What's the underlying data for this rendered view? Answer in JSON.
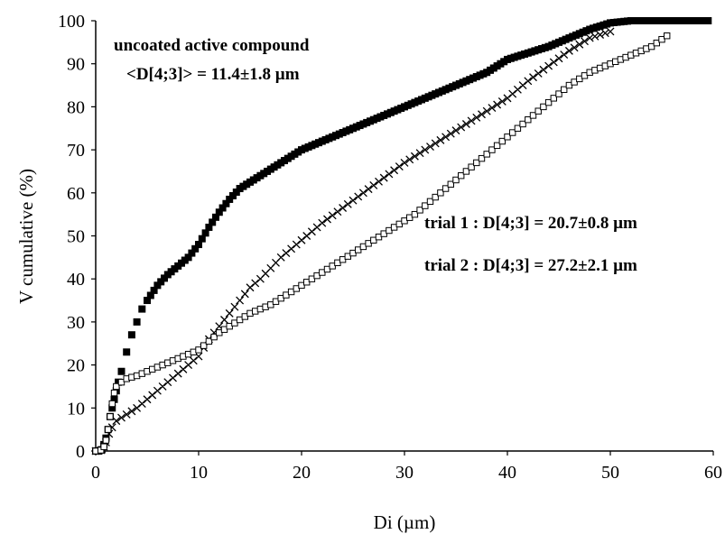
{
  "chart_data": {
    "type": "scatter",
    "xlabel": "Di (µm)",
    "ylabel": "V cumulative  (%)",
    "xlim": [
      0,
      60
    ],
    "ylim": [
      0,
      100
    ],
    "x_ticks": [
      "0",
      "10",
      "20",
      "30",
      "40",
      "50",
      "60"
    ],
    "y_ticks": [
      "0",
      "10",
      "20",
      "30",
      "40",
      "50",
      "60",
      "70",
      "80",
      "90",
      "100"
    ],
    "grid": false,
    "annotations": {
      "uncoated_title": "uncoated active compound",
      "uncoated_value": "<D[4;3]> = 11.4±1.8 µm",
      "trial1": "trial 1 : D[4;3] = 20.7±0.8 µm",
      "trial2": "trial 2 : D[4;3] = 27.2±2.1 µm"
    },
    "series": [
      {
        "marker": "filled-square",
        "color": "#000000",
        "points": [
          [
            0.0,
            0
          ],
          [
            0.3,
            0
          ],
          [
            0.6,
            0.3
          ],
          [
            0.8,
            1.5
          ],
          [
            1.0,
            3
          ],
          [
            1.2,
            5
          ],
          [
            1.4,
            8
          ],
          [
            1.6,
            10
          ],
          [
            1.8,
            12
          ],
          [
            2.0,
            14
          ],
          [
            2.2,
            16
          ],
          [
            2.5,
            18.5
          ],
          [
            3.0,
            23
          ],
          [
            3.5,
            27
          ],
          [
            4.0,
            30
          ],
          [
            4.5,
            33
          ],
          [
            5.0,
            35
          ],
          [
            6.0,
            38.5
          ],
          [
            7.0,
            41
          ],
          [
            8.0,
            43
          ],
          [
            9.0,
            45
          ],
          [
            10.0,
            48
          ],
          [
            11.0,
            52
          ],
          [
            12.0,
            55.5
          ],
          [
            13.0,
            58.5
          ],
          [
            14.0,
            61
          ],
          [
            15.0,
            62.5
          ],
          [
            16.0,
            64
          ],
          [
            17.0,
            65.5
          ],
          [
            18.0,
            67
          ],
          [
            19.0,
            68.5
          ],
          [
            20.0,
            70
          ],
          [
            22.0,
            72
          ],
          [
            24.0,
            74
          ],
          [
            26.0,
            76
          ],
          [
            28.0,
            78
          ],
          [
            30.0,
            80
          ],
          [
            32.0,
            82
          ],
          [
            34.0,
            84
          ],
          [
            36.0,
            86
          ],
          [
            38.0,
            88
          ],
          [
            40.0,
            91
          ],
          [
            42.0,
            92.5
          ],
          [
            44.0,
            94
          ],
          [
            46.0,
            96
          ],
          [
            48.0,
            98
          ],
          [
            50.0,
            99.5
          ],
          [
            52.0,
            100
          ],
          [
            54.0,
            100
          ],
          [
            56.0,
            100
          ],
          [
            58.0,
            100
          ],
          [
            59.5,
            100
          ]
        ]
      },
      {
        "marker": "cross",
        "color": "#000000",
        "points": [
          [
            0.0,
            0
          ],
          [
            0.5,
            0.2
          ],
          [
            0.8,
            1
          ],
          [
            1.0,
            2
          ],
          [
            1.3,
            4
          ],
          [
            1.6,
            5.5
          ],
          [
            2.0,
            7
          ],
          [
            3.0,
            8.5
          ],
          [
            4.0,
            10
          ],
          [
            5.0,
            12
          ],
          [
            6.0,
            14
          ],
          [
            7.0,
            16
          ],
          [
            8.0,
            18
          ],
          [
            9.0,
            20
          ],
          [
            10.0,
            22
          ],
          [
            11.0,
            26
          ],
          [
            12.0,
            29
          ],
          [
            13.0,
            32
          ],
          [
            14.0,
            35
          ],
          [
            15.0,
            38
          ],
          [
            16.0,
            40
          ],
          [
            17.0,
            42.5
          ],
          [
            18.0,
            45
          ],
          [
            19.0,
            47
          ],
          [
            20.0,
            49
          ],
          [
            22.0,
            53
          ],
          [
            24.0,
            56.5
          ],
          [
            26.0,
            60
          ],
          [
            28.0,
            63.5
          ],
          [
            30.0,
            67
          ],
          [
            32.0,
            70
          ],
          [
            34.0,
            73
          ],
          [
            36.0,
            76
          ],
          [
            38.0,
            79
          ],
          [
            40.0,
            82
          ],
          [
            42.0,
            86
          ],
          [
            44.0,
            89.5
          ],
          [
            46.0,
            93
          ],
          [
            48.0,
            96
          ],
          [
            50.0,
            97.5
          ]
        ]
      },
      {
        "marker": "open-square",
        "color": "#000000",
        "points": [
          [
            0.0,
            0
          ],
          [
            0.5,
            0.2
          ],
          [
            0.8,
            1
          ],
          [
            1.0,
            2.5
          ],
          [
            1.2,
            5
          ],
          [
            1.4,
            8
          ],
          [
            1.6,
            11
          ],
          [
            1.8,
            13.5
          ],
          [
            2.0,
            15
          ],
          [
            2.5,
            16
          ],
          [
            3.0,
            16.8
          ],
          [
            4.0,
            17.5
          ],
          [
            5.0,
            18.5
          ],
          [
            6.0,
            19.5
          ],
          [
            7.0,
            20.5
          ],
          [
            8.0,
            21.5
          ],
          [
            9.0,
            22.5
          ],
          [
            10.0,
            23.5
          ],
          [
            11.0,
            25.5
          ],
          [
            12.0,
            27.5
          ],
          [
            13.0,
            29
          ],
          [
            14.0,
            30.5
          ],
          [
            15.0,
            32
          ],
          [
            16.0,
            33
          ],
          [
            17.0,
            34
          ],
          [
            18.0,
            35.5
          ],
          [
            19.0,
            37
          ],
          [
            20.0,
            38.5
          ],
          [
            21.0,
            40
          ],
          [
            22.0,
            41.5
          ],
          [
            23.0,
            43
          ],
          [
            24.0,
            44.5
          ],
          [
            25.0,
            46
          ],
          [
            26.0,
            47.5
          ],
          [
            27.0,
            49
          ],
          [
            28.0,
            50.5
          ],
          [
            29.0,
            52
          ],
          [
            30.0,
            53.5
          ],
          [
            31.0,
            55
          ],
          [
            32.0,
            57
          ],
          [
            33.0,
            59
          ],
          [
            34.0,
            61
          ],
          [
            35.0,
            63
          ],
          [
            36.0,
            65
          ],
          [
            37.0,
            67
          ],
          [
            38.0,
            69
          ],
          [
            39.0,
            71
          ],
          [
            40.0,
            73
          ],
          [
            42.0,
            77
          ],
          [
            44.0,
            81
          ],
          [
            46.0,
            85
          ],
          [
            48.0,
            88
          ],
          [
            50.0,
            90
          ],
          [
            52.0,
            92
          ],
          [
            54.0,
            94
          ],
          [
            55.5,
            96.5
          ]
        ]
      }
    ]
  }
}
